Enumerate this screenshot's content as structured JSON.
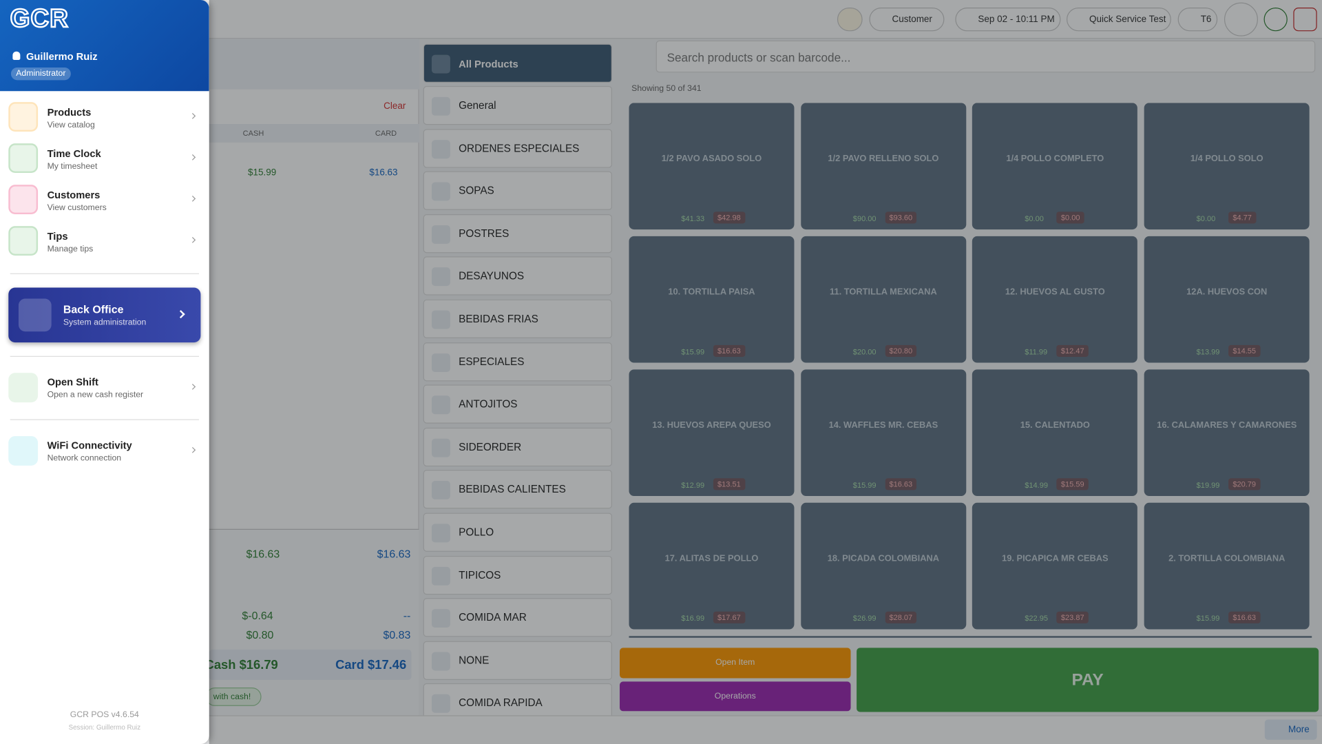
{
  "header": {
    "logo": "GCR",
    "user": "Guillermo Ruiz",
    "role": "Administrator"
  },
  "menu": [
    {
      "title": "Products",
      "subtitle": "View catalog"
    },
    {
      "title": "Time Clock",
      "subtitle": "My timesheet"
    },
    {
      "title": "Customers",
      "subtitle": "View customers"
    },
    {
      "title": "Tips",
      "subtitle": "Manage tips"
    }
  ],
  "back_office": {
    "title": "Back Office",
    "subtitle": "System administration"
  },
  "open_shift": {
    "title": "Open Shift",
    "subtitle": "Open a new cash register"
  },
  "wifi": {
    "title": "WiFi Connectivity",
    "subtitle": "Network connection"
  },
  "footer": {
    "version": "GCR POS v4.6.54",
    "session": "Session: Guillermo Ruiz"
  },
  "topbar": {
    "customer": "Customer",
    "datetime": "Sep 02 - 10:11 PM",
    "mode": "Quick Service Test",
    "terminal": "T6"
  },
  "cart": {
    "clear": "Clear",
    "col_cash": "CASH",
    "col_card": "CARD",
    "line": {
      "cash": "$15.99",
      "card": "$16.63"
    },
    "totals": [
      {
        "cash": "$16.63",
        "card": "$16.63"
      },
      {
        "cash": "$-0.64",
        "card": "--"
      },
      {
        "cash": "$0.80",
        "card": "$0.83"
      }
    ],
    "pay_cash": "Cash $16.79",
    "pay_card": "Card $17.46",
    "hint": "with cash!"
  },
  "categories": [
    "All Products",
    "General",
    "ORDENES ESPECIALES",
    "SOPAS",
    "POSTRES",
    "DESAYUNOS",
    "BEBIDAS FRIAS",
    "ESPECIALES",
    "ANTOJITOS",
    "SIDEORDER",
    "BEBIDAS CALIENTES",
    "POLLO",
    "TIPICOS",
    "COMIDA MAR",
    "NONE",
    "COMIDA RAPIDA"
  ],
  "search": {
    "placeholder": "Search products or scan barcode...",
    "showing": "Showing 50 of 341"
  },
  "products": [
    {
      "name": "1/2 PAVO ASADO SOLO",
      "cash": "$41.33",
      "card": "$42.98"
    },
    {
      "name": "1/2 PAVO RELLENO SOLO",
      "cash": "$90.00",
      "card": "$93.60"
    },
    {
      "name": "1/4 POLLO COMPLETO",
      "cash": "$0.00",
      "card": "$0.00"
    },
    {
      "name": "1/4 POLLO SOLO",
      "cash": "$0.00",
      "card": "$4.77"
    },
    {
      "name": "10. TORTILLA PAISA",
      "cash": "$15.99",
      "card": "$16.63"
    },
    {
      "name": "11. TORTILLA MEXICANA",
      "cash": "$20.00",
      "card": "$20.80"
    },
    {
      "name": "12. HUEVOS AL GUSTO",
      "cash": "$11.99",
      "card": "$12.47"
    },
    {
      "name": "12A. HUEVOS CON",
      "cash": "$13.99",
      "card": "$14.55"
    },
    {
      "name": "13. HUEVOS AREPA QUESO",
      "cash": "$12.99",
      "card": "$13.51"
    },
    {
      "name": "14. WAFFLES  MR. CEBAS",
      "cash": "$15.99",
      "card": "$16.63"
    },
    {
      "name": "15. CALENTADO",
      "cash": "$14.99",
      "card": "$15.59"
    },
    {
      "name": "16. CALAMARES Y CAMARONES",
      "cash": "$19.99",
      "card": "$20.79"
    },
    {
      "name": "17. ALITAS  DE POLLO",
      "cash": "$16.99",
      "card": "$17.67"
    },
    {
      "name": "18. PICADA COLOMBIANA",
      "cash": "$26.99",
      "card": "$28.07"
    },
    {
      "name": "19. PICAPICA MR CEBAS",
      "cash": "$22.95",
      "card": "$23.87"
    },
    {
      "name": "2. TORTILLA COLOMBIANA",
      "cash": "$15.99",
      "card": "$16.63"
    }
  ],
  "actions": {
    "open_item": "Open Item",
    "operations": "Operations",
    "pay": "PAY",
    "more": "More"
  }
}
